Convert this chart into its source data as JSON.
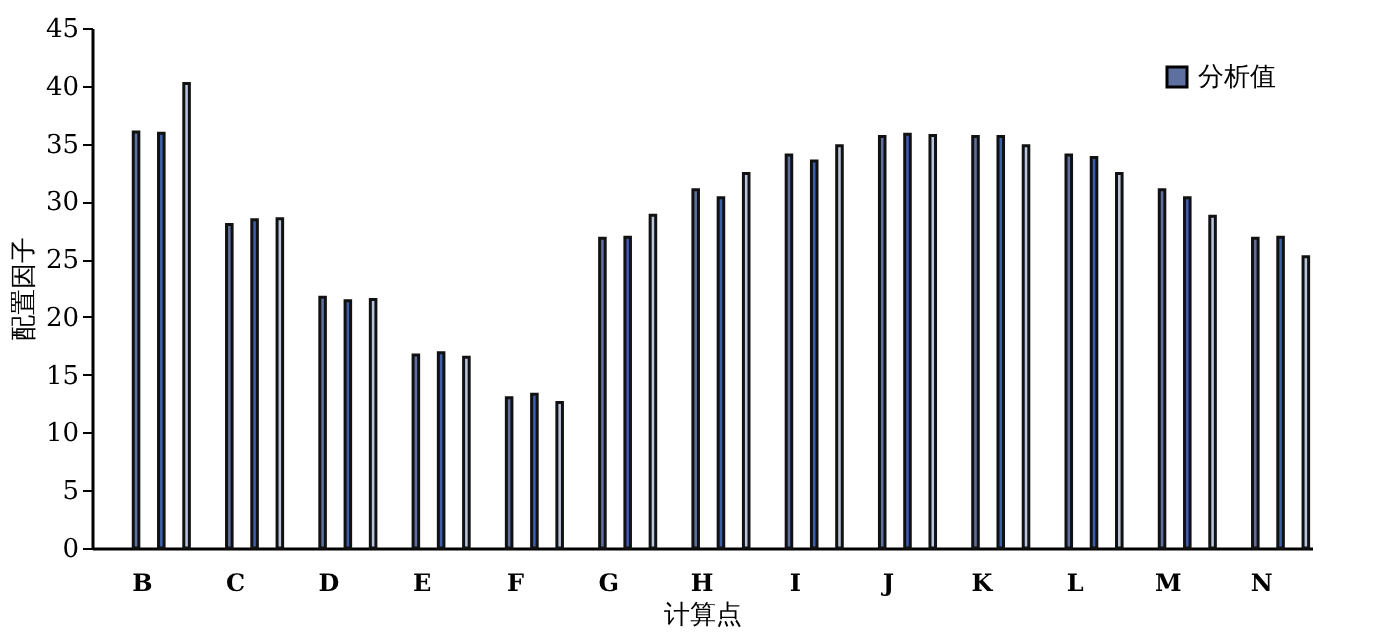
{
  "chart_data": {
    "type": "bar",
    "xlabel": "计算点",
    "ylabel": "配置因子",
    "categories": [
      "B",
      "C",
      "D",
      "E",
      "F",
      "G",
      "H",
      "I",
      "J",
      "K",
      "L",
      "M",
      "N"
    ],
    "series": [
      {
        "name": "分析值",
        "color": "#5e70a0",
        "values": [
          36,
          28,
          21.7,
          16.7,
          13,
          26.8,
          31,
          34,
          35.6,
          35.6,
          34,
          31,
          26.8
        ]
      },
      {
        "color": "#3d5ea8",
        "values": [
          35.9,
          28.4,
          21.4,
          16.9,
          13.3,
          26.9,
          30.3,
          33.5,
          35.8,
          35.6,
          33.8,
          30.3,
          26.9
        ]
      },
      {
        "color": "#b9c5de",
        "values": [
          40.2,
          28.5,
          21.5,
          16.5,
          12.6,
          28.8,
          32.4,
          34.8,
          35.7,
          34.8,
          32.4,
          28.7,
          25.2
        ]
      }
    ],
    "ylim": [
      0,
      45
    ],
    "yticks": [
      0,
      5,
      10,
      15,
      20,
      25,
      30,
      35,
      40,
      45
    ],
    "grid": false,
    "legend": "top right"
  }
}
